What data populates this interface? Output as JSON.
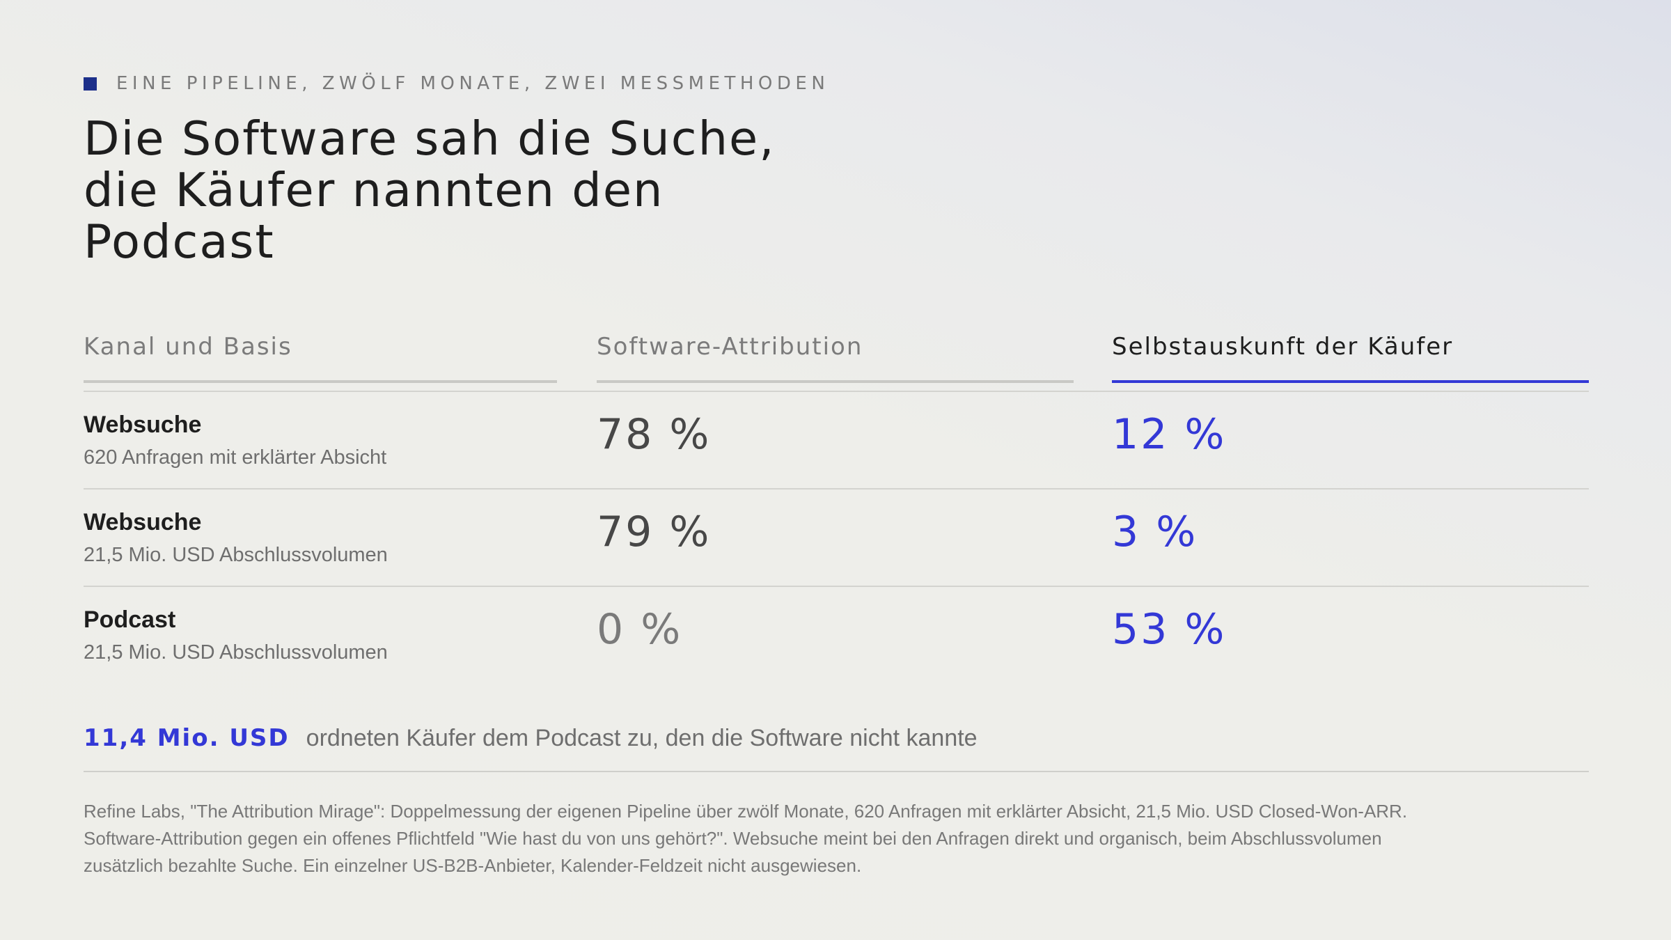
{
  "eyebrow": "EINE PIPELINE, ZWÖLF MONATE, ZWEI MESSMETHODEN",
  "title": "Die Software sah die Suche,\ndie Käufer nannten den\nPodcast",
  "columns": {
    "channel": "Kanal und Basis",
    "software": "Software-Attribution",
    "buyers": "Selbstauskunft der Käufer"
  },
  "rows": [
    {
      "channel": "Websuche",
      "basis": "620 Anfragen mit erklärter Absicht",
      "software": "78 %",
      "buyers": "12 %"
    },
    {
      "channel": "Websuche",
      "basis": "21,5 Mio. USD Abschlussvolumen",
      "software": "79 %",
      "buyers": "3 %"
    },
    {
      "channel": "Podcast",
      "basis": "21,5 Mio. USD Abschlussvolumen",
      "software": "0 %",
      "buyers": "53 %"
    }
  ],
  "callout": {
    "amount": "11,4 Mio. USD",
    "text": "ordneten Käufer dem Podcast zu, den die Software nicht kannte"
  },
  "source": {
    "line1": "Refine Labs, \"The Attribution Mirage\": Doppelmessung der eigenen Pipeline über zwölf Monate, 620 Anfragen mit erklärter Absicht, 21,5 Mio. USD Closed-Won-ARR.",
    "line2": "Software-Attribution gegen ein offenes Pflichtfeld \"Wie hast du von uns gehört?\". Websuche meint bei den Anfragen direkt und organisch, beim Abschlussvolumen",
    "line3": "zusätzlich bezahlte Suche. Ein einzelner US-B2B-Anbieter, Kalender-Feldzeit nicht ausgewiesen."
  },
  "colors": {
    "accent": "#3338d6",
    "marker": "#1c2f8a",
    "muted": "#7b7b7b",
    "text": "#1e1e1e"
  }
}
